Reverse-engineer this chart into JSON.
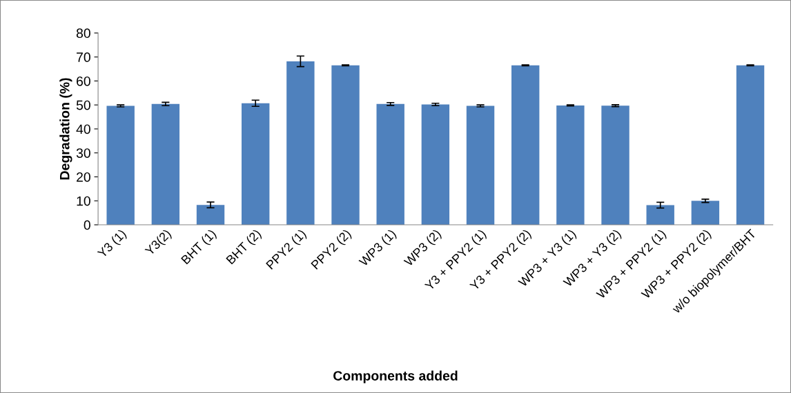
{
  "chart_data": {
    "type": "bar",
    "xlabel": "Components added",
    "ylabel": "Degradation (%)",
    "categories": [
      "Y3 (1)",
      "Y3(2)",
      "BHT (1)",
      "BHT (2)",
      "PPY2 (1)",
      "PPY2 (2)",
      "WP3 (1)",
      "WP3 (2)",
      "Y3 + PPY2 (1)",
      "Y3 + PPY2 (2)",
      "WP3 + Y3 (1)",
      "WP3 + Y3 (2)",
      "WP3 + PPY2 (1)",
      "WP3 + PPY2 (2)",
      "w/o biopolymer/BHT"
    ],
    "values": [
      49.6,
      50.4,
      8.3,
      50.7,
      68.2,
      66.5,
      50.4,
      50.2,
      49.6,
      66.5,
      49.8,
      49.7,
      8.2,
      10.0,
      66.5
    ],
    "errors": [
      0.4,
      0.7,
      1.2,
      1.3,
      2.2,
      0.2,
      0.6,
      0.5,
      0.4,
      0.2,
      0.2,
      0.4,
      1.2,
      0.7,
      0.2
    ],
    "color": "#4f81bd",
    "ylim": [
      0,
      80
    ],
    "yticks": [
      0,
      10,
      20,
      30,
      40,
      50,
      60,
      70,
      80
    ],
    "grid": false,
    "legend": false
  }
}
